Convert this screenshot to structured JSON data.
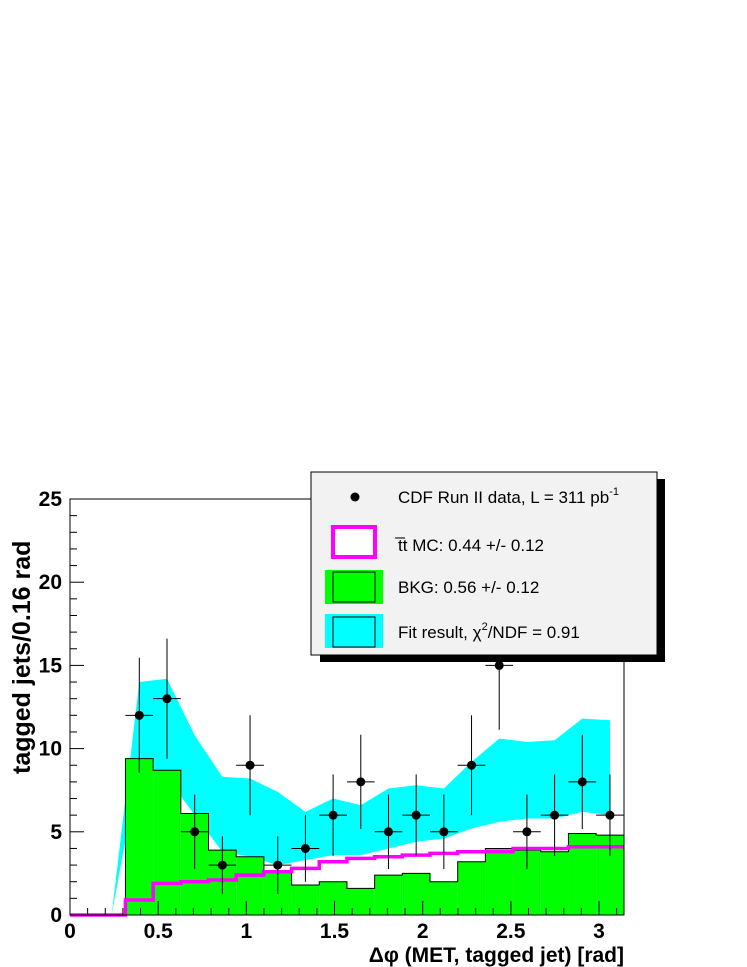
{
  "chart_data": {
    "type": "bar",
    "title": "",
    "xlabel": "Δφ (MET, tagged jet) [rad]",
    "ylabel": "tagged jets/0.16 rad",
    "xlim": [
      0,
      3.1416
    ],
    "ylim": [
      0,
      25
    ],
    "bin_width": 0.157,
    "x_ticks": [
      0,
      0.5,
      1,
      1.5,
      2,
      2.5,
      3
    ],
    "x_tick_labels": [
      "0",
      "0.5",
      "1",
      "1.5",
      "2",
      "2.5",
      "3"
    ],
    "y_ticks": [
      0,
      5,
      10,
      15,
      20,
      25
    ],
    "y_tick_labels": [
      "0",
      "5",
      "10",
      "15",
      "20",
      "25"
    ],
    "grid": false,
    "legend_position": "top-right",
    "bin_centers": [
      0.079,
      0.236,
      0.393,
      0.55,
      0.707,
      0.864,
      1.021,
      1.178,
      1.335,
      1.492,
      1.649,
      1.806,
      1.963,
      2.12,
      2.277,
      2.434,
      2.591,
      2.748,
      2.905,
      3.062
    ],
    "series": [
      {
        "name": "CDF Run II data, L = 311 pb",
        "name_superscript": "-1",
        "kind": "points",
        "color": "#000000",
        "values": [
          0,
          0,
          12,
          13,
          5,
          3,
          9,
          3,
          4,
          6,
          8,
          5,
          6,
          5,
          9,
          15,
          5,
          6,
          8,
          6
        ],
        "errors": [
          0,
          0,
          3.46,
          3.61,
          2.24,
          1.73,
          3.0,
          1.73,
          2.0,
          2.45,
          2.83,
          2.24,
          2.45,
          2.24,
          3.0,
          3.87,
          2.24,
          2.45,
          2.83,
          2.45
        ]
      },
      {
        "name": "MC: 0.44 +/- 0.12",
        "name_prefix": "t̅t",
        "kind": "step",
        "color": "#ff00ff",
        "values": [
          0,
          0,
          0.9,
          1.9,
          2.0,
          2.1,
          2.4,
          2.6,
          2.8,
          3.2,
          3.4,
          3.5,
          3.6,
          3.7,
          3.8,
          3.8,
          4.0,
          4.0,
          4.1,
          4.1
        ]
      },
      {
        "name": "BKG: 0.56 +/- 0.12",
        "kind": "filled-step",
        "color": "#00ff00",
        "values": [
          0,
          0,
          9.4,
          8.7,
          6.1,
          3.9,
          3.5,
          2.6,
          1.8,
          2.0,
          1.6,
          2.4,
          2.5,
          2.0,
          3.2,
          4.0,
          3.9,
          3.8,
          4.9,
          4.8
        ]
      },
      {
        "name": "Fit result,",
        "name_math": "χ",
        "name_superscript": "2",
        "name_suffix": "/NDF = 0.91",
        "kind": "band",
        "color": "#00ffff",
        "upper": [
          0,
          0,
          14.0,
          14.2,
          10.8,
          8.3,
          8.2,
          7.4,
          6.2,
          7.0,
          6.6,
          7.6,
          7.8,
          7.6,
          9.2,
          10.6,
          10.4,
          10.5,
          11.8,
          11.7
        ],
        "lower": [
          0,
          0,
          9.0,
          8.3,
          6.0,
          3.8,
          3.5,
          3.0,
          3.3,
          3.6,
          3.6,
          4.0,
          4.4,
          4.6,
          5.2,
          5.6,
          5.8,
          5.8,
          6.2,
          6.0
        ]
      }
    ]
  }
}
